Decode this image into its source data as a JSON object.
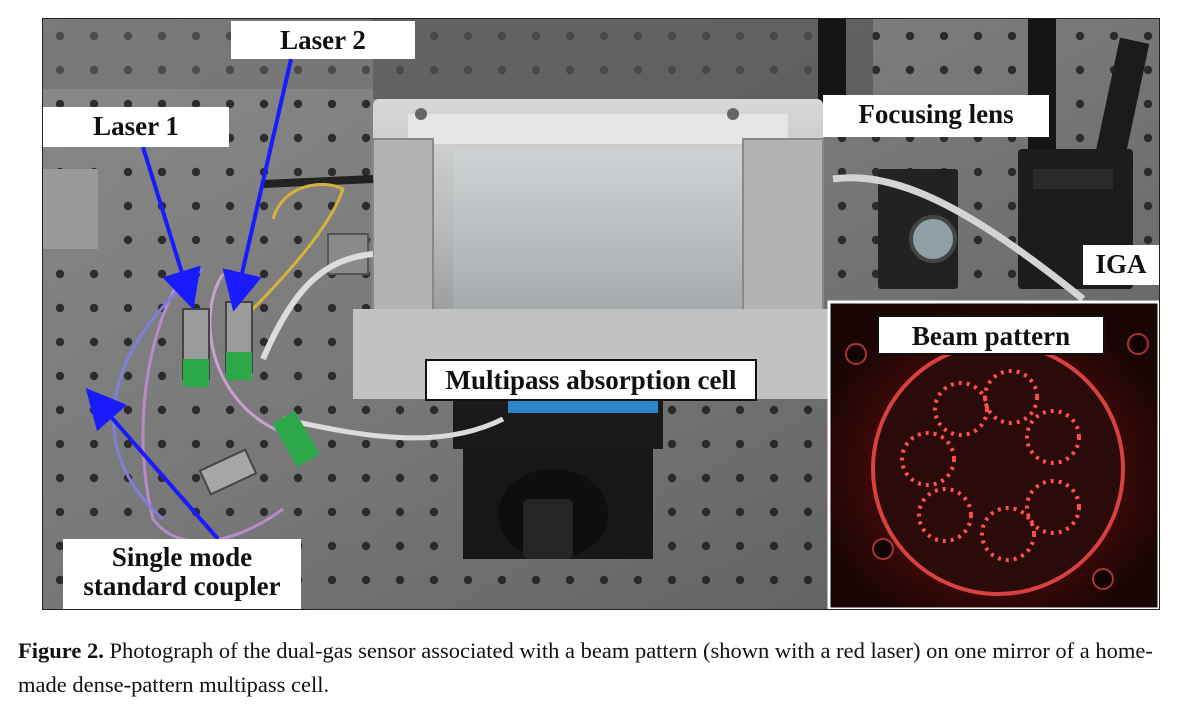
{
  "figure": {
    "labels": {
      "laser1": "Laser 1",
      "laser2": "Laser 2",
      "focusing_lens": "Focusing lens",
      "iga": "IGA",
      "beam_pattern": "Beam pattern",
      "multipass_cell": "Multipass absorption cell",
      "coupler_line1": "Single mode",
      "coupler_line2": "standard coupler"
    },
    "colors": {
      "arrow": "#1a1aff",
      "optical_table": "#6f6f6f",
      "laser_glow": "#ff2a2a"
    }
  },
  "caption": {
    "label": "Figure 2.",
    "text": " Photograph of the dual-gas sensor associated with a beam pattern (shown with a red laser) on one mirror of a home-made dense-pattern multipass cell."
  }
}
